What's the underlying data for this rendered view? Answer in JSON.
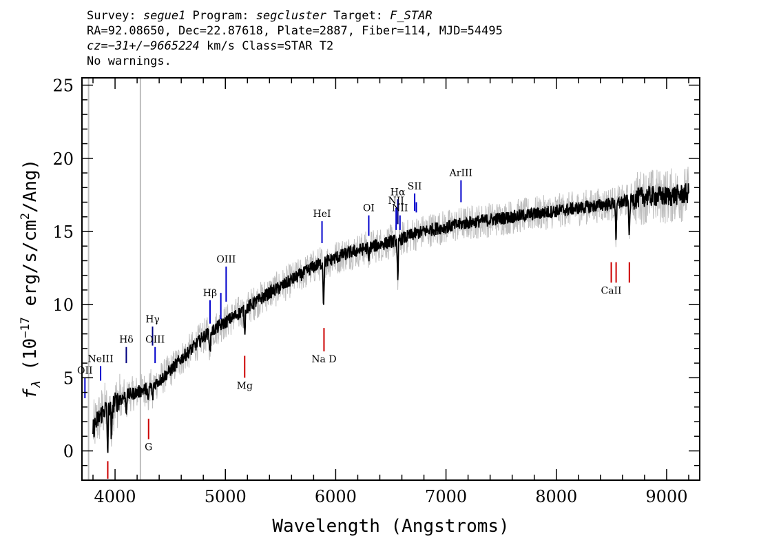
{
  "header": {
    "line1": {
      "survey_label": "Survey: ",
      "survey": "segue1",
      "program_label": " Program: ",
      "program": "segcluster",
      "target_label": " Target: ",
      "target": "F_STAR"
    },
    "line2": "RA=92.08650, Dec=22.87618, Plate=2887, Fiber=114, MJD=54495",
    "line3": {
      "cz_label": "cz=",
      "cz_value": "−31+/−9665224",
      "rest": " km/s Class=STAR T2"
    },
    "line4": "No warnings."
  },
  "chart_data": {
    "type": "line",
    "xlabel": "Wavelength (Angstroms)",
    "ylabel_prefix": "f",
    "ylabel_sub": "λ",
    "ylabel_main": " (10",
    "ylabel_exp": "−17",
    "ylabel_mid": " erg/s/cm",
    "ylabel_exp2": "2",
    "ylabel_end": "/Ang)",
    "xlim": [
      3700,
      9300
    ],
    "ylim": [
      -2,
      25.5
    ],
    "xticks": [
      4000,
      5000,
      6000,
      7000,
      8000,
      9000
    ],
    "yticks": [
      0,
      5,
      10,
      15,
      20,
      25
    ],
    "grid": false,
    "vertical_markers_x": [
      3760,
      4230
    ],
    "series": [
      {
        "style": "noisy-flux",
        "color": "#bebebe",
        "anchors_x": [
          3800,
          3850,
          3900,
          3950,
          4000,
          4100,
          4200,
          4300,
          4400,
          4500,
          4600,
          4700,
          4800,
          4900,
          5000,
          5100,
          5200,
          5300,
          5400,
          5500,
          5600,
          5700,
          5800,
          5900,
          6000,
          6100,
          6200,
          6300,
          6400,
          6500,
          6600,
          6700,
          6800,
          6900,
          7000,
          7200,
          7400,
          7600,
          7800,
          8000,
          8200,
          8400,
          8600,
          8800,
          9000,
          9200
        ],
        "anchors_y": [
          1.5,
          2.2,
          2.8,
          3.0,
          3.3,
          3.8,
          4.0,
          4.3,
          4.8,
          5.5,
          6.3,
          7.0,
          7.8,
          8.3,
          8.8,
          9.3,
          9.8,
          10.3,
          10.8,
          11.2,
          11.7,
          12.1,
          12.6,
          12.9,
          13.2,
          13.5,
          13.7,
          13.9,
          14.1,
          14.3,
          14.5,
          14.8,
          15.0,
          15.2,
          15.3,
          15.6,
          15.8,
          16.0,
          16.2,
          16.4,
          16.6,
          16.8,
          17.0,
          17.4,
          17.4,
          17.6
        ]
      },
      {
        "style": "smoothed-flux",
        "color": "#000000",
        "anchors_x": [
          3800,
          3850,
          3900,
          3950,
          4000,
          4100,
          4200,
          4300,
          4400,
          4500,
          4600,
          4700,
          4800,
          4900,
          5000,
          5100,
          5200,
          5300,
          5400,
          5500,
          5600,
          5700,
          5800,
          5900,
          6000,
          6100,
          6200,
          6300,
          6400,
          6500,
          6600,
          6700,
          6800,
          6900,
          7000,
          7200,
          7400,
          7600,
          7800,
          8000,
          8200,
          8400,
          8600,
          8800,
          9000,
          9200
        ],
        "anchors_y": [
          1.5,
          2.2,
          2.8,
          3.0,
          3.3,
          3.8,
          4.0,
          4.3,
          4.8,
          5.5,
          6.3,
          7.0,
          7.8,
          8.3,
          8.8,
          9.3,
          9.8,
          10.3,
          10.8,
          11.2,
          11.7,
          12.1,
          12.6,
          12.9,
          13.2,
          13.5,
          13.7,
          13.9,
          14.1,
          14.3,
          14.5,
          14.8,
          15.0,
          15.2,
          15.3,
          15.6,
          15.8,
          16.0,
          16.2,
          16.4,
          16.6,
          16.8,
          17.0,
          17.4,
          17.4,
          17.6
        ]
      }
    ],
    "absorption_dips": [
      {
        "x": 3933,
        "depth": 3.0
      },
      {
        "x": 3968,
        "depth": 2.5
      },
      {
        "x": 4101,
        "depth": 1.0
      },
      {
        "x": 4300,
        "depth": 1.2
      },
      {
        "x": 4340,
        "depth": 1.0
      },
      {
        "x": 4861,
        "depth": 1.5
      },
      {
        "x": 5175,
        "depth": 1.5
      },
      {
        "x": 5890,
        "depth": 2.8
      },
      {
        "x": 6300,
        "depth": 1.0
      },
      {
        "x": 6563,
        "depth": 3.0
      },
      {
        "x": 8542,
        "depth": 2.5
      },
      {
        "x": 8662,
        "depth": 2.5
      }
    ],
    "emission_lines": [
      {
        "label": "OII",
        "x": 3727,
        "y0": 3.6,
        "y1": 5.0,
        "color": "#0000cc"
      },
      {
        "label": "NeIII",
        "x": 3869,
        "y0": 4.8,
        "y1": 5.8,
        "color": "#0000cc"
      },
      {
        "label": "Hδ",
        "x": 4102,
        "y0": 6.0,
        "y1": 7.1,
        "color": "#000080"
      },
      {
        "label": "Hγ",
        "x": 4340,
        "y0": 7.2,
        "y1": 8.5,
        "color": "#000080"
      },
      {
        "label": "OIII",
        "x": 4363,
        "y0": 6.0,
        "y1": 7.1,
        "color": "#0000cc"
      },
      {
        "label": "Hβ",
        "x": 4861,
        "y0": 8.7,
        "y1": 10.3,
        "color": "#0000cc"
      },
      {
        "label": "",
        "x": 4959,
        "y0": 9.0,
        "y1": 10.8,
        "color": "#0000cc"
      },
      {
        "label": "OIII",
        "x": 5007,
        "y0": 10.2,
        "y1": 12.6,
        "color": "#0000cc"
      },
      {
        "label": "HeI",
        "x": 5876,
        "y0": 14.2,
        "y1": 15.7,
        "color": "#0000cc"
      },
      {
        "label": "OI",
        "x": 6300,
        "y0": 14.7,
        "y1": 16.1,
        "color": "#0000cc"
      },
      {
        "label": "NII",
        "x": 6548,
        "y0": 15.1,
        "y1": 16.6,
        "color": "#0000cc"
      },
      {
        "label": "Hα",
        "x": 6563,
        "y0": 15.5,
        "y1": 17.2,
        "color": "#000080"
      },
      {
        "label": "NII",
        "x": 6583,
        "y0": 15.1,
        "y1": 16.1,
        "color": "#0000cc"
      },
      {
        "label": "SII",
        "x": 6716,
        "y0": 16.4,
        "y1": 17.6,
        "color": "#0000cc"
      },
      {
        "label": "",
        "x": 6731,
        "y0": 16.3,
        "y1": 17.0,
        "color": "#0000cc"
      },
      {
        "label": "ArIII",
        "x": 7136,
        "y0": 17.0,
        "y1": 18.5,
        "color": "#0000cc"
      }
    ],
    "absorption_lines": [
      {
        "label": "",
        "x": 3934,
        "y0": -1.9,
        "y1": -0.7,
        "color": "#cc0000"
      },
      {
        "label": "G",
        "x": 4304,
        "y0": 0.8,
        "y1": 2.2,
        "color": "#cc0000"
      },
      {
        "label": "Mg",
        "x": 5175,
        "y0": 5.0,
        "y1": 6.5,
        "color": "#cc0000"
      },
      {
        "label": "Na D",
        "x": 5894,
        "y0": 6.8,
        "y1": 8.4,
        "color": "#cc0000"
      },
      {
        "label": "CaII",
        "x": 8498,
        "y0": 11.5,
        "y1": 12.9,
        "color": "#cc0000"
      },
      {
        "label": "",
        "x": 8542,
        "y0": 11.5,
        "y1": 12.9,
        "color": "#cc0000"
      },
      {
        "label": "",
        "x": 8662,
        "y0": 11.5,
        "y1": 12.9,
        "color": "#cc0000"
      }
    ]
  }
}
